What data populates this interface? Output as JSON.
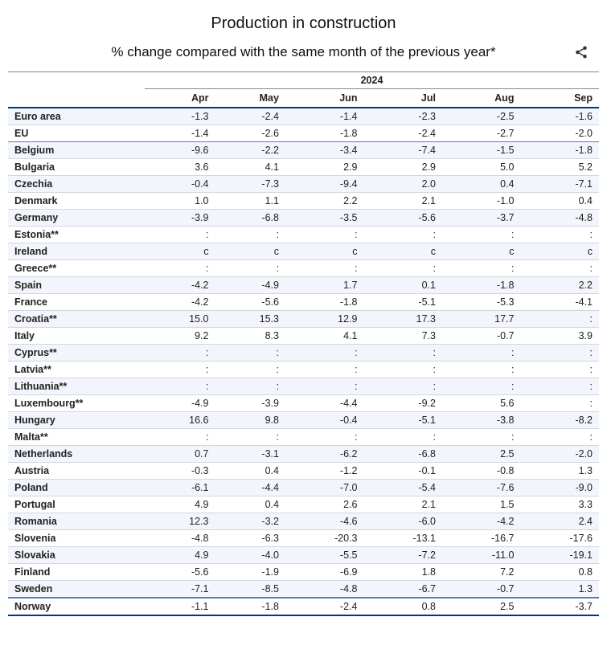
{
  "title": "Production in construction",
  "subtitle": "% change compared with the same month of the previous year*",
  "year_header": "2024",
  "months": [
    "Apr",
    "May",
    "Jun",
    "Jul",
    "Aug",
    "Sep"
  ],
  "rows": [
    {
      "label": "Euro area",
      "values": [
        "-1.3",
        "-2.4",
        "-1.4",
        "-2.3",
        "-2.5",
        "-1.6"
      ],
      "stripe": true,
      "agg": "top"
    },
    {
      "label": "EU",
      "values": [
        "-1.4",
        "-2.6",
        "-1.8",
        "-2.4",
        "-2.7",
        "-2.0"
      ],
      "stripe": false,
      "agg": "bottom"
    },
    {
      "label": "Belgium",
      "values": [
        "-9.6",
        "-2.2",
        "-3.4",
        "-7.4",
        "-1.5",
        "-1.8"
      ],
      "stripe": true
    },
    {
      "label": "Bulgaria",
      "values": [
        "3.6",
        "4.1",
        "2.9",
        "2.9",
        "5.0",
        "5.2"
      ],
      "stripe": false
    },
    {
      "label": "Czechia",
      "values": [
        "-0.4",
        "-7.3",
        "-9.4",
        "2.0",
        "0.4",
        "-7.1"
      ],
      "stripe": true
    },
    {
      "label": "Denmark",
      "values": [
        "1.0",
        "1.1",
        "2.2",
        "2.1",
        "-1.0",
        "0.4"
      ],
      "stripe": false
    },
    {
      "label": "Germany",
      "values": [
        "-3.9",
        "-6.8",
        "-3.5",
        "-5.6",
        "-3.7",
        "-4.8"
      ],
      "stripe": true
    },
    {
      "label": "Estonia**",
      "values": [
        ":",
        ":",
        ":",
        ":",
        ":",
        ":"
      ],
      "stripe": false
    },
    {
      "label": "Ireland",
      "values": [
        "c",
        "c",
        "c",
        "c",
        "c",
        "c"
      ],
      "stripe": true
    },
    {
      "label": "Greece**",
      "values": [
        ":",
        ":",
        ":",
        ":",
        ":",
        ":"
      ],
      "stripe": false
    },
    {
      "label": "Spain",
      "values": [
        "-4.2",
        "-4.9",
        "1.7",
        "0.1",
        "-1.8",
        "2.2"
      ],
      "stripe": true
    },
    {
      "label": "France",
      "values": [
        "-4.2",
        "-5.6",
        "-1.8",
        "-5.1",
        "-5.3",
        "-4.1"
      ],
      "stripe": false
    },
    {
      "label": "Croatia**",
      "values": [
        "15.0",
        "15.3",
        "12.9",
        "17.3",
        "17.7",
        ":"
      ],
      "stripe": true
    },
    {
      "label": "Italy",
      "values": [
        "9.2",
        "8.3",
        "4.1",
        "7.3",
        "-0.7",
        "3.9"
      ],
      "stripe": false
    },
    {
      "label": "Cyprus**",
      "values": [
        ":",
        ":",
        ":",
        ":",
        ":",
        ":"
      ],
      "stripe": true
    },
    {
      "label": "Latvia**",
      "values": [
        ":",
        ":",
        ":",
        ":",
        ":",
        ":"
      ],
      "stripe": false
    },
    {
      "label": "Lithuania**",
      "values": [
        ":",
        ":",
        ":",
        ":",
        ":",
        ":"
      ],
      "stripe": true
    },
    {
      "label": "Luxembourg**",
      "values": [
        "-4.9",
        "-3.9",
        "-4.4",
        "-9.2",
        "5.6",
        ":"
      ],
      "stripe": false
    },
    {
      "label": "Hungary",
      "values": [
        "16.6",
        "9.8",
        "-0.4",
        "-5.1",
        "-3.8",
        "-8.2"
      ],
      "stripe": true
    },
    {
      "label": "Malta**",
      "values": [
        ":",
        ":",
        ":",
        ":",
        ":",
        ":"
      ],
      "stripe": false
    },
    {
      "label": "Netherlands",
      "values": [
        "0.7",
        "-3.1",
        "-6.2",
        "-6.8",
        "2.5",
        "-2.0"
      ],
      "stripe": true
    },
    {
      "label": "Austria",
      "values": [
        "-0.3",
        "0.4",
        "-1.2",
        "-0.1",
        "-0.8",
        "1.3"
      ],
      "stripe": false
    },
    {
      "label": "Poland",
      "values": [
        "-6.1",
        "-4.4",
        "-7.0",
        "-5.4",
        "-7.6",
        "-9.0"
      ],
      "stripe": true
    },
    {
      "label": "Portugal",
      "values": [
        "4.9",
        "0.4",
        "2.6",
        "2.1",
        "1.5",
        "3.3"
      ],
      "stripe": false
    },
    {
      "label": "Romania",
      "values": [
        "12.3",
        "-3.2",
        "-4.6",
        "-6.0",
        "-4.2",
        "2.4"
      ],
      "stripe": true
    },
    {
      "label": "Slovenia",
      "values": [
        "-4.8",
        "-6.3",
        "-20.3",
        "-13.1",
        "-16.7",
        "-17.6"
      ],
      "stripe": false
    },
    {
      "label": "Slovakia",
      "values": [
        "4.9",
        "-4.0",
        "-5.5",
        "-7.2",
        "-11.0",
        "-19.1"
      ],
      "stripe": true
    },
    {
      "label": "Finland",
      "values": [
        "-5.6",
        "-1.9",
        "-6.9",
        "1.8",
        "7.2",
        "0.8"
      ],
      "stripe": false
    },
    {
      "label": "Sweden",
      "values": [
        "-7.1",
        "-8.5",
        "-4.8",
        "-6.7",
        "-0.7",
        "1.3"
      ],
      "stripe": true,
      "heavy": true
    },
    {
      "label": "Norway",
      "values": [
        "-1.1",
        "-1.8",
        "-2.4",
        "0.8",
        "2.5",
        "-3.7"
      ],
      "stripe": false,
      "last": true
    }
  ],
  "colors": {
    "header_rule": "#003399",
    "row_rule": "#d0d6e0",
    "stripe_bg": "#f2f5fb",
    "agg_rule": "#5a7abf"
  }
}
